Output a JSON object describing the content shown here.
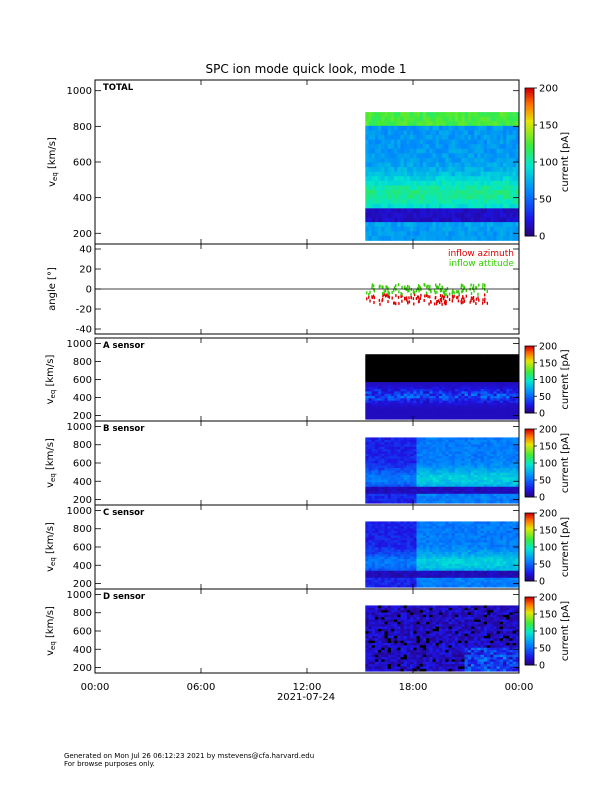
{
  "page": {
    "title": "SPC ion mode quick look, mode 1",
    "footer_line1": "Generated on Mon Jul 26 06:12:23 2021 by mstevens@cfa.harvard.edu",
    "footer_line2": "For browse purposes only."
  },
  "chart_data": [
    {
      "type": "heatmap",
      "panel": "TOTAL",
      "label": "TOTAL",
      "ylabel_main": "v",
      "ylabel_sub": "eq",
      "ylabel_unit": "[km/s]",
      "ylim": [
        140,
        1060
      ],
      "yticks": [
        200,
        400,
        600,
        800,
        1000
      ],
      "data_x_range_hours": [
        15.3,
        24.0
      ],
      "v_range_kms": [
        160,
        880
      ],
      "colorbar": {
        "label": "current [pA]",
        "range": [
          0,
          200
        ],
        "ticks": [
          0,
          50,
          100,
          150,
          200
        ]
      }
    },
    {
      "type": "scatter",
      "panel": "angle",
      "ylabel": "angle [°]",
      "ylim": [
        -45,
        45
      ],
      "yticks": [
        -40,
        -20,
        0,
        20,
        40
      ],
      "reference_line": 0,
      "series": [
        {
          "name": "inflow azimuth",
          "color": "#e00000"
        },
        {
          "name": "inflow attitude",
          "color": "#33cc00"
        }
      ],
      "data_x_range_hours": [
        15.3,
        22.2
      ]
    },
    {
      "type": "heatmap",
      "panel": "A sensor",
      "label": "A sensor",
      "ylabel_main": "v",
      "ylabel_sub": "eq",
      "ylabel_unit": "[km/s]",
      "ylim": [
        140,
        1060
      ],
      "yticks": [
        200,
        400,
        600,
        800,
        1000
      ],
      "data_x_range_hours": [
        15.3,
        24.0
      ],
      "v_range_kms": [
        160,
        880
      ],
      "colorbar": {
        "label": "current [pA]",
        "range": [
          0,
          200
        ],
        "ticks": [
          0,
          50,
          100,
          150,
          200
        ]
      }
    },
    {
      "type": "heatmap",
      "panel": "B sensor",
      "label": "B sensor",
      "ylabel_main": "v",
      "ylabel_sub": "eq",
      "ylabel_unit": "[km/s]",
      "ylim": [
        140,
        1060
      ],
      "yticks": [
        200,
        400,
        600,
        800,
        1000
      ],
      "data_x_range_hours": [
        15.3,
        24.0
      ],
      "v_range_kms": [
        160,
        880
      ],
      "colorbar": {
        "label": "current [pA]",
        "range": [
          0,
          200
        ],
        "ticks": [
          0,
          50,
          100,
          150,
          200
        ]
      }
    },
    {
      "type": "heatmap",
      "panel": "C sensor",
      "label": "C sensor",
      "ylabel_main": "v",
      "ylabel_sub": "eq",
      "ylabel_unit": "[km/s]",
      "ylim": [
        140,
        1060
      ],
      "yticks": [
        200,
        400,
        600,
        800,
        1000
      ],
      "data_x_range_hours": [
        15.3,
        24.0
      ],
      "v_range_kms": [
        160,
        880
      ],
      "colorbar": {
        "label": "current [pA]",
        "range": [
          0,
          200
        ],
        "ticks": [
          0,
          50,
          100,
          150,
          200
        ]
      }
    },
    {
      "type": "heatmap",
      "panel": "D sensor",
      "label": "D sensor",
      "ylabel_main": "v",
      "ylabel_sub": "eq",
      "ylabel_unit": "[km/s]",
      "ylim": [
        140,
        1060
      ],
      "yticks": [
        200,
        400,
        600,
        800,
        1000
      ],
      "data_x_range_hours": [
        15.3,
        24.0
      ],
      "v_range_kms": [
        160,
        880
      ],
      "colorbar": {
        "label": "current [pA]",
        "range": [
          0,
          200
        ],
        "ticks": [
          0,
          50,
          100,
          150,
          200
        ]
      }
    }
  ],
  "x_axis": {
    "range_hours": [
      0,
      24
    ],
    "ticks": [
      0,
      6,
      12,
      18,
      24
    ],
    "tick_labels": [
      "00:00",
      "06:00",
      "12:00",
      "18:00",
      "00:00"
    ],
    "date_label": "2021-07-24"
  }
}
